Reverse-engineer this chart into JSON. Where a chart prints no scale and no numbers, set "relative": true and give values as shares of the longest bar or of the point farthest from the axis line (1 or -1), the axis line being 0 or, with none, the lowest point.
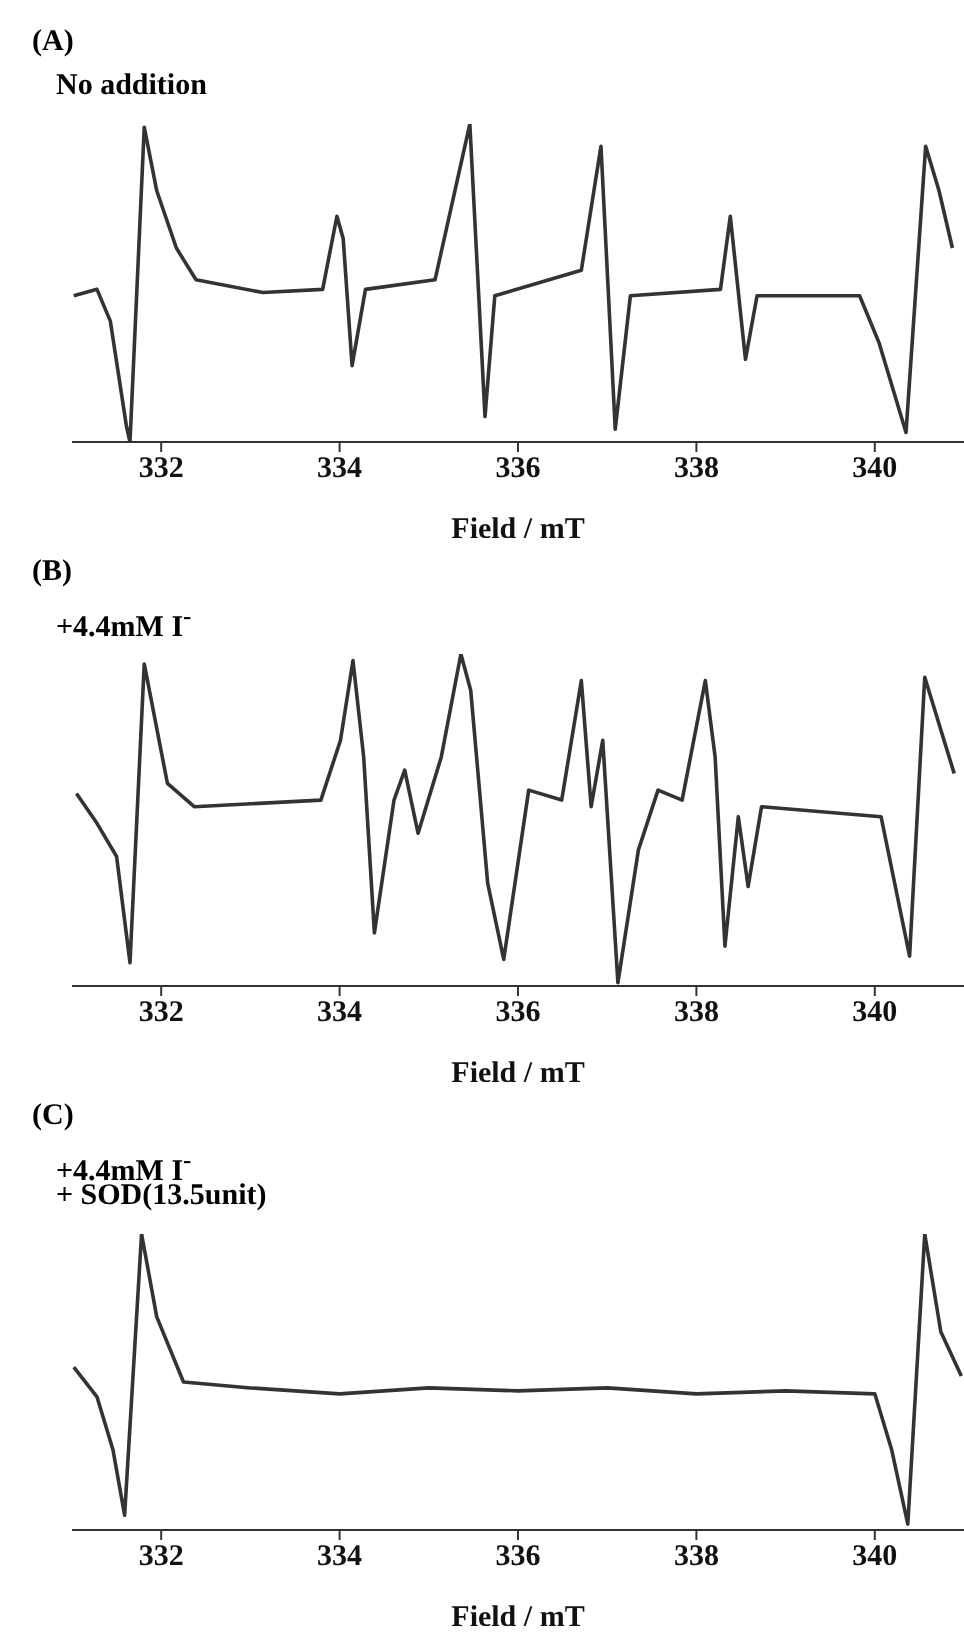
{
  "chart_data": [
    {
      "type": "line",
      "title": "(A)",
      "subtitle": "No addition",
      "xlabel": "Field / mT",
      "relative": true,
      "xlim": [
        331,
        341
      ],
      "xticks": [
        332,
        334,
        336,
        338,
        340
      ],
      "x": [
        331.02,
        331.28,
        331.43,
        331.61,
        331.65,
        331.81,
        331.95,
        332.17,
        332.39,
        333.14,
        333.81,
        333.97,
        334.04,
        334.14,
        334.29,
        335.07,
        335.46,
        335.63,
        335.74,
        336.71,
        336.93,
        337.09,
        337.26,
        338.27,
        338.38,
        338.55,
        338.68,
        339.83,
        340.05,
        340.35,
        340.57,
        340.72,
        340.87
      ],
      "series": [
        {
          "color": "#333333",
          "values": [
            0.46,
            0.48,
            0.38,
            0.05,
            0.0,
            0.99,
            0.79,
            0.61,
            0.51,
            0.47,
            0.48,
            0.71,
            0.64,
            0.24,
            0.48,
            0.51,
            1.0,
            0.08,
            0.46,
            0.54,
            0.93,
            0.04,
            0.46,
            0.48,
            0.71,
            0.26,
            0.46,
            0.46,
            0.31,
            0.03,
            0.93,
            0.79,
            0.61
          ]
        }
      ]
    },
    {
      "type": "line",
      "title": "(B)",
      "subtitle": "+4.4mM I$^{-}$",
      "xlabel": "Field / mT",
      "relative": true,
      "xlim": [
        331,
        341
      ],
      "xticks": [
        332,
        334,
        336,
        338,
        340
      ],
      "x": [
        331.05,
        331.28,
        331.5,
        331.65,
        331.81,
        332.07,
        332.37,
        333.79,
        334.01,
        334.15,
        334.27,
        334.39,
        334.61,
        334.73,
        334.88,
        335.14,
        335.36,
        335.47,
        335.66,
        335.84,
        336.12,
        336.49,
        336.71,
        336.82,
        336.95,
        337.12,
        337.35,
        337.57,
        337.84,
        338.1,
        338.21,
        338.32,
        338.47,
        338.58,
        338.73,
        340.07,
        340.39,
        340.56,
        340.89
      ],
      "series": [
        {
          "color": "#333333",
          "values": [
            0.58,
            0.49,
            0.39,
            0.07,
            0.97,
            0.61,
            0.54,
            0.56,
            0.74,
            0.98,
            0.69,
            0.16,
            0.56,
            0.65,
            0.46,
            0.69,
            1.0,
            0.89,
            0.31,
            0.08,
            0.59,
            0.56,
            0.92,
            0.54,
            0.74,
            0.01,
            0.41,
            0.59,
            0.56,
            0.92,
            0.69,
            0.12,
            0.51,
            0.3,
            0.54,
            0.51,
            0.09,
            0.93,
            0.64
          ]
        }
      ]
    },
    {
      "type": "line",
      "title": "(C)",
      "subtitle": "+4.4mM I$^{-}$\n+ SOD(13.5unit)",
      "xlabel": "Field / mT",
      "relative": true,
      "xlim": [
        331,
        341
      ],
      "xticks": [
        332,
        334,
        336,
        338,
        340
      ],
      "x": [
        331.02,
        331.28,
        331.46,
        331.59,
        331.78,
        331.95,
        332.25,
        333,
        334,
        335,
        336,
        337,
        338,
        339,
        340,
        340.19,
        340.37,
        340.56,
        340.74,
        340.97
      ],
      "series": [
        {
          "color": "#333333",
          "values": [
            0.55,
            0.45,
            0.27,
            0.05,
            1.0,
            0.72,
            0.5,
            0.48,
            0.46,
            0.48,
            0.47,
            0.48,
            0.46,
            0.47,
            0.46,
            0.27,
            0.02,
            1.0,
            0.67,
            0.52
          ]
        }
      ]
    }
  ]
}
